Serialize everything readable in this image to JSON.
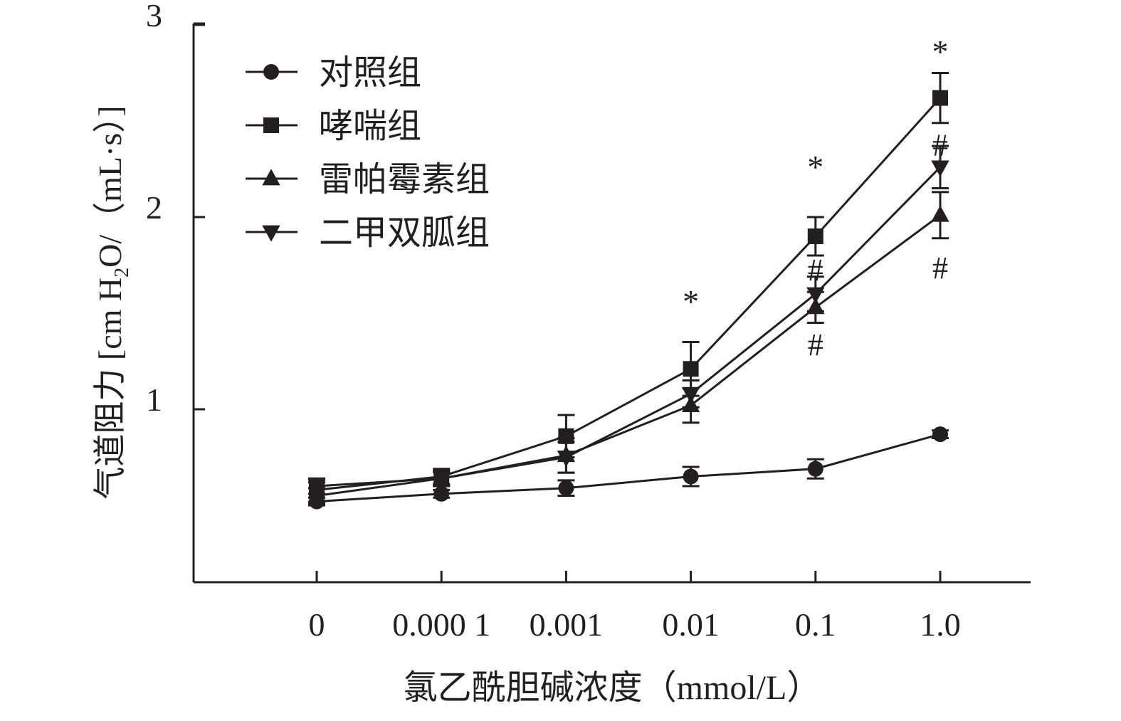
{
  "chart_data": {
    "type": "line",
    "title": "",
    "xlabel": "氯乙酰胆碱浓度（mmol/L）",
    "ylabel_parts": {
      "main": "气道阻力 [cm H",
      "subscript": "2",
      "rest": "O/（mL·s）]"
    },
    "categories": [
      "0",
      "0.000 1",
      "0.001",
      "0.01",
      "0.1",
      "1.0"
    ],
    "y_ticks": [
      "1",
      "2",
      "3"
    ],
    "y_tick_values": [
      1,
      2,
      3
    ],
    "ylim": [
      0.1,
      3
    ],
    "grid": false,
    "legend_position": "top-left",
    "series": [
      {
        "name": "对照组",
        "marker": "circle",
        "values": [
          0.52,
          0.56,
          0.59,
          0.65,
          0.69,
          0.87
        ],
        "errors": [
          0.02,
          0.02,
          0.04,
          0.05,
          0.05,
          0.02
        ]
      },
      {
        "name": "哮喘组",
        "marker": "square",
        "values": [
          0.58,
          0.65,
          0.86,
          1.21,
          1.9,
          2.62
        ],
        "errors": [
          0.04,
          0.04,
          0.11,
          0.14,
          0.1,
          0.13
        ]
      },
      {
        "name": "雷帕霉素组",
        "marker": "triangle-up",
        "values": [
          0.55,
          0.64,
          0.76,
          1.02,
          1.53,
          2.01
        ],
        "errors": [
          0.04,
          0.04,
          0.09,
          0.09,
          0.08,
          0.12
        ]
      },
      {
        "name": "二甲双胍组",
        "marker": "triangle-down",
        "values": [
          0.6,
          0.64,
          0.75,
          1.08,
          1.6,
          2.26
        ],
        "errors": [
          0.04,
          0.04,
          0.08,
          0.07,
          0.09,
          0.11
        ]
      }
    ],
    "annotations": [
      {
        "text": "*",
        "category_index": 3,
        "y": 1.6
      },
      {
        "text": "*",
        "category_index": 4,
        "y": 2.3
      },
      {
        "text": "*",
        "category_index": 5,
        "y": 2.9
      },
      {
        "text": "#",
        "category_index": 4,
        "y": 1.73
      },
      {
        "text": "#",
        "category_index": 4,
        "y": 1.34
      },
      {
        "text": "#",
        "category_index": 5,
        "y": 1.74
      },
      {
        "text": "#",
        "category_index": 5,
        "y": 2.38
      }
    ],
    "colors": {
      "line": "#231f20",
      "text": "#231f20"
    }
  }
}
